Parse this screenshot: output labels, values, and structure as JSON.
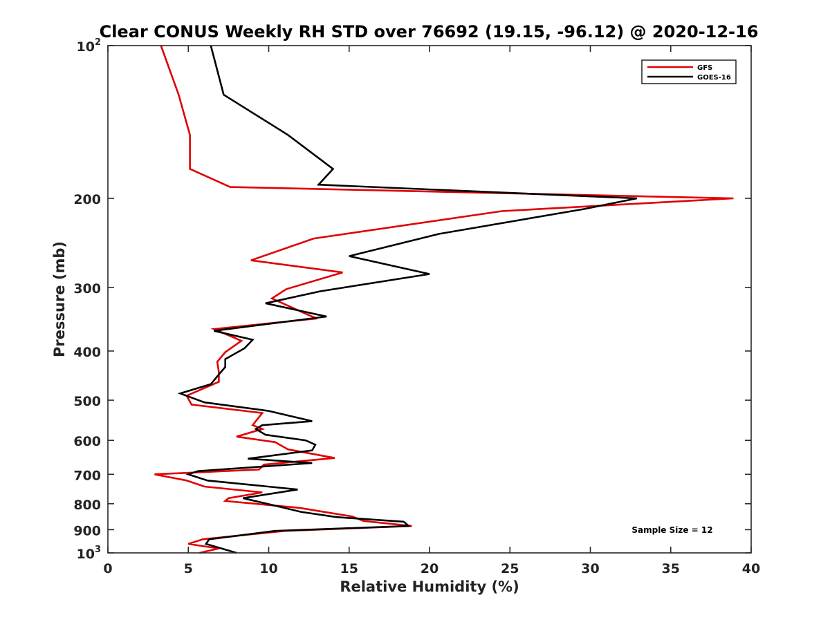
{
  "chart_data": {
    "type": "line",
    "title": "Clear CONUS Weekly RH STD over 76692 (19.15, -96.12) @ 2020-12-16",
    "xlabel": "Relative Humidity (%)",
    "ylabel": "Pressure (mb)",
    "xlim": [
      0,
      40
    ],
    "ylim": [
      100,
      1000
    ],
    "yscale": "log",
    "yreversed": true,
    "xticks": [
      0,
      5,
      10,
      15,
      20,
      25,
      30,
      35,
      40
    ],
    "yticks": [
      {
        "value": 100,
        "base": "10",
        "exp": "2"
      },
      {
        "value": 200,
        "label": "200"
      },
      {
        "value": 300,
        "label": "300"
      },
      {
        "value": 400,
        "label": "400"
      },
      {
        "value": 500,
        "label": "500"
      },
      {
        "value": 600,
        "label": "600"
      },
      {
        "value": 700,
        "label": "700"
      },
      {
        "value": 800,
        "label": "800"
      },
      {
        "value": 900,
        "label": "900"
      },
      {
        "value": 1000,
        "base": "10",
        "exp": "3"
      }
    ],
    "grid": false,
    "legend_position": "top-right",
    "annotation": "Sample Size = 12",
    "series": [
      {
        "name": "GFS",
        "color": "#e00000",
        "points": [
          [
            3.3,
            100
          ],
          [
            4.4,
            125
          ],
          [
            5.1,
            150
          ],
          [
            5.1,
            175
          ],
          [
            7.6,
            190
          ],
          [
            38.9,
            200
          ],
          [
            24.5,
            212
          ],
          [
            12.8,
            240
          ],
          [
            8.9,
            265
          ],
          [
            14.6,
            280
          ],
          [
            11.1,
            302
          ],
          [
            10.2,
            315
          ],
          [
            12.5,
            340
          ],
          [
            13.0,
            345
          ],
          [
            6.6,
            362
          ],
          [
            8.3,
            382
          ],
          [
            7.3,
            402
          ],
          [
            6.8,
            420
          ],
          [
            6.9,
            440
          ],
          [
            6.9,
            460
          ],
          [
            4.9,
            490
          ],
          [
            5.2,
            510
          ],
          [
            9.6,
            530
          ],
          [
            9.0,
            560
          ],
          [
            9.6,
            570
          ],
          [
            8.0,
            590
          ],
          [
            10.4,
            605
          ],
          [
            11.2,
            625
          ],
          [
            14.1,
            650
          ],
          [
            9.7,
            670
          ],
          [
            9.4,
            685
          ],
          [
            2.9,
            700
          ],
          [
            4.9,
            720
          ],
          [
            6.0,
            740
          ],
          [
            9.6,
            760
          ],
          [
            7.5,
            780
          ],
          [
            7.3,
            790
          ],
          [
            11.9,
            815
          ],
          [
            15.2,
            848
          ],
          [
            15.9,
            865
          ],
          [
            18.9,
            885
          ],
          [
            11.0,
            905
          ],
          [
            5.9,
            940
          ],
          [
            5.0,
            960
          ],
          [
            6.9,
            980
          ],
          [
            5.7,
            1000
          ]
        ]
      },
      {
        "name": "GOES-16",
        "color": "#000000",
        "points": [
          [
            6.4,
            100
          ],
          [
            7.2,
            125
          ],
          [
            11.2,
            150
          ],
          [
            14.0,
            175
          ],
          [
            13.1,
            188
          ],
          [
            32.9,
            200
          ],
          [
            29.6,
            210
          ],
          [
            20.6,
            235
          ],
          [
            15.0,
            260
          ],
          [
            20.0,
            282
          ],
          [
            13.2,
            305
          ],
          [
            9.8,
            322
          ],
          [
            13.6,
            342
          ],
          [
            6.6,
            365
          ],
          [
            9.0,
            380
          ],
          [
            8.5,
            395
          ],
          [
            7.3,
            415
          ],
          [
            7.3,
            430
          ],
          [
            6.9,
            445
          ],
          [
            6.4,
            465
          ],
          [
            4.5,
            485
          ],
          [
            6.0,
            505
          ],
          [
            10.0,
            525
          ],
          [
            12.7,
            550
          ],
          [
            9.6,
            560
          ],
          [
            9.2,
            570
          ],
          [
            9.8,
            585
          ],
          [
            12.3,
            600
          ],
          [
            12.9,
            612
          ],
          [
            12.7,
            628
          ],
          [
            8.7,
            652
          ],
          [
            12.7,
            665
          ],
          [
            5.6,
            690
          ],
          [
            5.0,
            700
          ],
          [
            6.2,
            720
          ],
          [
            11.8,
            750
          ],
          [
            8.4,
            780
          ],
          [
            9.9,
            800
          ],
          [
            12.0,
            830
          ],
          [
            14.2,
            850
          ],
          [
            18.4,
            868
          ],
          [
            18.7,
            885
          ],
          [
            10.4,
            905
          ],
          [
            6.3,
            940
          ],
          [
            6.1,
            960
          ],
          [
            8.0,
            1000
          ]
        ]
      }
    ]
  }
}
